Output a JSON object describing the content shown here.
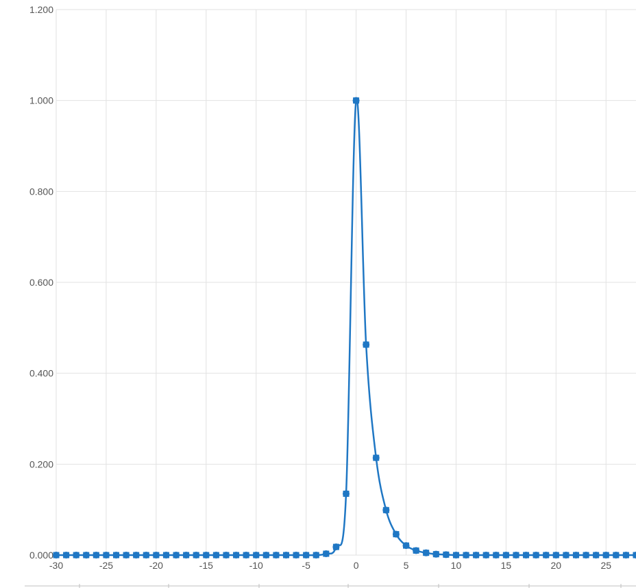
{
  "chart_data": {
    "type": "line",
    "title": "",
    "xlabel": "",
    "ylabel": "",
    "xlim": [
      -30,
      28
    ],
    "ylim": [
      0,
      1.2
    ],
    "x_ticks": [
      -30,
      -25,
      -20,
      -15,
      -10,
      -5,
      0,
      5,
      10,
      15,
      20,
      25
    ],
    "x_tick_labels": [
      "-30",
      "-25",
      "-20",
      "-15",
      "-10",
      "-5",
      "0",
      "5",
      "10",
      "15",
      "20",
      "25"
    ],
    "y_ticks": [
      0,
      0.2,
      0.4,
      0.6,
      0.8,
      1.0,
      1.2
    ],
    "y_tick_labels": [
      "0.000",
      "0.200",
      "0.400",
      "0.600",
      "0.800",
      "1.000",
      "1.200"
    ],
    "grid": true,
    "legend": "none",
    "series": [
      {
        "color": "#1f77c4",
        "smooth": true,
        "points": [
          {
            "x": -30,
            "y": 0
          },
          {
            "x": -29,
            "y": 0
          },
          {
            "x": -28,
            "y": 0
          },
          {
            "x": -27,
            "y": 0
          },
          {
            "x": -26,
            "y": 0
          },
          {
            "x": -25,
            "y": 0
          },
          {
            "x": -24,
            "y": 0
          },
          {
            "x": -23,
            "y": 0
          },
          {
            "x": -22,
            "y": 0
          },
          {
            "x": -21,
            "y": 0
          },
          {
            "x": -20,
            "y": 0
          },
          {
            "x": -19,
            "y": 0
          },
          {
            "x": -18,
            "y": 0
          },
          {
            "x": -17,
            "y": 0
          },
          {
            "x": -16,
            "y": 0
          },
          {
            "x": -15,
            "y": 0
          },
          {
            "x": -14,
            "y": 0
          },
          {
            "x": -13,
            "y": 0
          },
          {
            "x": -12,
            "y": 0
          },
          {
            "x": -11,
            "y": 0
          },
          {
            "x": -10,
            "y": 0
          },
          {
            "x": -9,
            "y": 0
          },
          {
            "x": -8,
            "y": 0
          },
          {
            "x": -7,
            "y": 0
          },
          {
            "x": -6,
            "y": 0
          },
          {
            "x": -5,
            "y": 0
          },
          {
            "x": -4,
            "y": 0
          },
          {
            "x": -3,
            "y": 0.003
          },
          {
            "x": -2,
            "y": 0.018
          },
          {
            "x": -1,
            "y": 0.135
          },
          {
            "x": 0,
            "y": 1.0
          },
          {
            "x": 1,
            "y": 0.463
          },
          {
            "x": 2,
            "y": 0.214
          },
          {
            "x": 3,
            "y": 0.099
          },
          {
            "x": 4,
            "y": 0.046
          },
          {
            "x": 5,
            "y": 0.021
          },
          {
            "x": 6,
            "y": 0.01
          },
          {
            "x": 7,
            "y": 0.005
          },
          {
            "x": 8,
            "y": 0.002
          },
          {
            "x": 9,
            "y": 0.001
          },
          {
            "x": 10,
            "y": 0
          },
          {
            "x": 11,
            "y": 0
          },
          {
            "x": 12,
            "y": 0
          },
          {
            "x": 13,
            "y": 0
          },
          {
            "x": 14,
            "y": 0
          },
          {
            "x": 15,
            "y": 0
          },
          {
            "x": 16,
            "y": 0
          },
          {
            "x": 17,
            "y": 0
          },
          {
            "x": 18,
            "y": 0
          },
          {
            "x": 19,
            "y": 0
          },
          {
            "x": 20,
            "y": 0
          },
          {
            "x": 21,
            "y": 0
          },
          {
            "x": 22,
            "y": 0
          },
          {
            "x": 23,
            "y": 0
          },
          {
            "x": 24,
            "y": 0
          },
          {
            "x": 25,
            "y": 0
          },
          {
            "x": 26,
            "y": 0
          },
          {
            "x": 27,
            "y": 0
          },
          {
            "x": 28,
            "y": 0
          }
        ]
      }
    ]
  }
}
